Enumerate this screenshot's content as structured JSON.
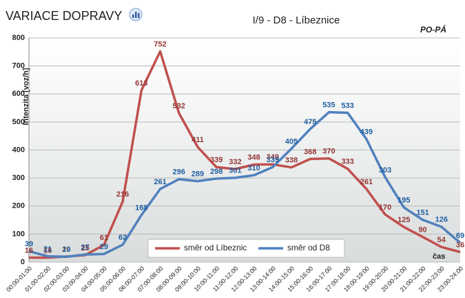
{
  "chart_data": {
    "type": "line",
    "title": "VARIACE DOPRAVY",
    "subtitle": "I/9 - D8 - Líbeznice",
    "annotation": "PO-PÁ",
    "y_label": "Intenzita  [voz/h]",
    "x_label": "čas",
    "categories": [
      "00:00-01:00",
      "01:00-02:00",
      "02:00-03:00",
      "03:00-04:00",
      "04:00-05:00",
      "05:00-06:00",
      "06:00-07:00",
      "07:00-08:00",
      "08:00-09:00",
      "09:00-10:00",
      "10:00-11:00",
      "11:00-12:00",
      "12:00-13:00",
      "13:00-14:00",
      "14:00-15:00",
      "15:00-16:00",
      "16:00-17:00",
      "17:00-18:00",
      "18:00-19:00",
      "19:00-20:00",
      "20:00-21:00",
      "21:00-22:00",
      "22:00-23:00",
      "23:00-24:00"
    ],
    "series": [
      {
        "name": "směr od Líbeznic",
        "color": "#c0504d",
        "label_color": "#943634",
        "values": [
          16,
          16,
          20,
          25,
          61,
          216,
          613,
          752,
          532,
          411,
          339,
          332,
          348,
          349,
          338,
          368,
          370,
          333,
          261,
          170,
          125,
          90,
          54,
          36
        ]
      },
      {
        "name": "směr od D8",
        "color": "#4f81bd",
        "label_color": "#1f5fa0",
        "values": [
          39,
          21,
          19,
          27,
          29,
          62,
          168,
          261,
          296,
          289,
          298,
          301,
          310,
          339,
          405,
          475,
          535,
          533,
          439,
          303,
          195,
          151,
          126,
          69
        ]
      }
    ],
    "ylim": [
      0,
      800
    ],
    "yticks": [
      0,
      100,
      200,
      300,
      400,
      500,
      600,
      700,
      800
    ],
    "grid": true,
    "legend": "bottom"
  }
}
